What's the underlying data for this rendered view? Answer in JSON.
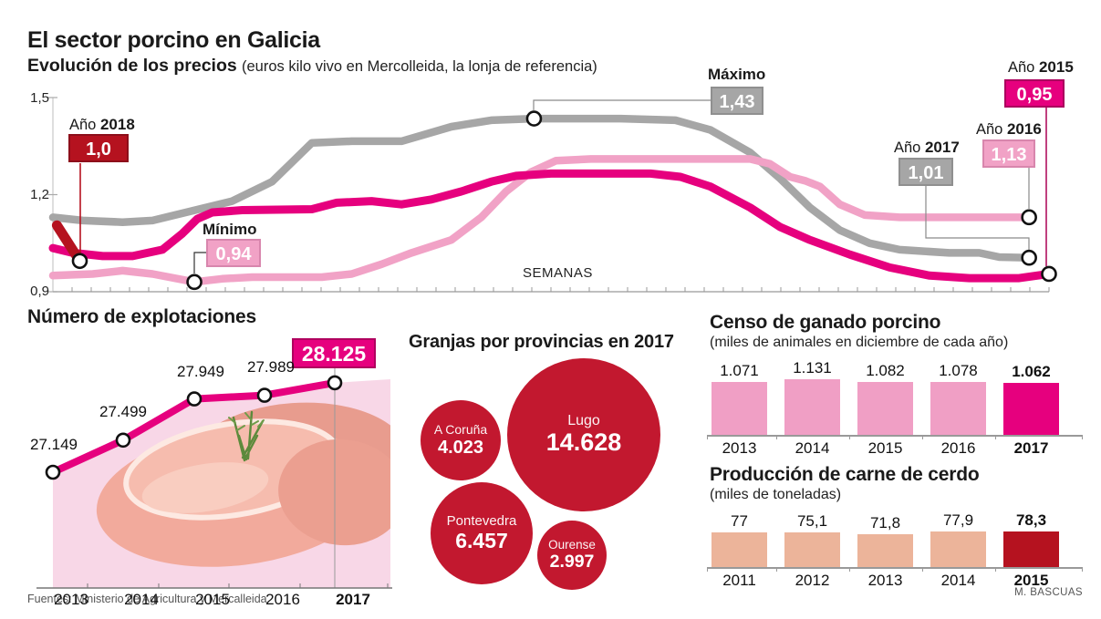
{
  "header": {
    "title": "El sector porcino en Galicia",
    "subtitle_bold": "Evolución de los precios",
    "subtitle_note": "(euros kilo vivo en Mercolleida, la lonja de referencia)"
  },
  "colors": {
    "magenta": "#e6007e",
    "light_pink": "#f1a2c6",
    "gray": "#a6a6a6",
    "dark_red": "#b5121f",
    "bubble_red": "#c2182f",
    "salmon": "#ecb49a",
    "area_fill": "#f8d7e7"
  },
  "chart_data": [
    {
      "type": "line",
      "title": "Evolución de los precios",
      "subtitle": "(euros kilo vivo en Mercolleida, la lonja de referencia)",
      "xlabel": "SEMANAS",
      "ylim": [
        0.9,
        1.5
      ],
      "yticks": [
        1.5,
        1.2,
        0.9
      ],
      "yticks_labels": [
        "1,5",
        "1,2",
        "0,9"
      ],
      "x_unit": "fraction of year (weeks)",
      "series": [
        {
          "name": "2017",
          "color": "#a6a6a6",
          "points": [
            [
              0,
              1.13
            ],
            [
              0.03,
              1.12
            ],
            [
              0.07,
              1.115
            ],
            [
              0.1,
              1.12
            ],
            [
              0.14,
              1.15
            ],
            [
              0.18,
              1.18
            ],
            [
              0.22,
              1.24
            ],
            [
              0.24,
              1.3
            ],
            [
              0.26,
              1.36
            ],
            [
              0.3,
              1.365
            ],
            [
              0.35,
              1.365
            ],
            [
              0.4,
              1.41
            ],
            [
              0.44,
              1.43
            ],
            [
              0.483,
              1.435
            ],
            [
              0.57,
              1.435
            ],
            [
              0.625,
              1.43
            ],
            [
              0.66,
              1.4
            ],
            [
              0.7,
              1.33
            ],
            [
              0.73,
              1.25
            ],
            [
              0.76,
              1.16
            ],
            [
              0.79,
              1.09
            ],
            [
              0.82,
              1.05
            ],
            [
              0.85,
              1.03
            ],
            [
              0.9,
              1.02
            ],
            [
              0.93,
              1.02
            ],
            [
              0.95,
              1.007
            ],
            [
              0.98,
              1.005
            ]
          ]
        },
        {
          "name": "2016",
          "color": "#f1a2c6",
          "points": [
            [
              0,
              0.95
            ],
            [
              0.04,
              0.955
            ],
            [
              0.07,
              0.965
            ],
            [
              0.1,
              0.955
            ],
            [
              0.142,
              0.93
            ],
            [
              0.17,
              0.94
            ],
            [
              0.2,
              0.945
            ],
            [
              0.27,
              0.945
            ],
            [
              0.3,
              0.955
            ],
            [
              0.33,
              0.985
            ],
            [
              0.36,
              1.02
            ],
            [
              0.4,
              1.06
            ],
            [
              0.43,
              1.13
            ],
            [
              0.455,
              1.21
            ],
            [
              0.48,
              1.27
            ],
            [
              0.505,
              1.305
            ],
            [
              0.54,
              1.31
            ],
            [
              0.7,
              1.31
            ],
            [
              0.72,
              1.295
            ],
            [
              0.74,
              1.255
            ],
            [
              0.755,
              1.243
            ],
            [
              0.77,
              1.225
            ],
            [
              0.79,
              1.17
            ],
            [
              0.815,
              1.137
            ],
            [
              0.85,
              1.13
            ],
            [
              0.98,
              1.13
            ]
          ]
        },
        {
          "name": "2015",
          "color": "#e6007e",
          "points": [
            [
              0,
              1.035
            ],
            [
              0.02,
              1.02
            ],
            [
              0.05,
              1.01
            ],
            [
              0.08,
              1.01
            ],
            [
              0.11,
              1.03
            ],
            [
              0.13,
              1.08
            ],
            [
              0.145,
              1.125
            ],
            [
              0.16,
              1.145
            ],
            [
              0.19,
              1.152
            ],
            [
              0.26,
              1.155
            ],
            [
              0.285,
              1.175
            ],
            [
              0.32,
              1.18
            ],
            [
              0.35,
              1.17
            ],
            [
              0.38,
              1.185
            ],
            [
              0.41,
              1.21
            ],
            [
              0.44,
              1.24
            ],
            [
              0.465,
              1.258
            ],
            [
              0.5,
              1.265
            ],
            [
              0.6,
              1.265
            ],
            [
              0.63,
              1.255
            ],
            [
              0.66,
              1.225
            ],
            [
              0.7,
              1.16
            ],
            [
              0.73,
              1.1
            ],
            [
              0.76,
              1.06
            ],
            [
              0.8,
              1.015
            ],
            [
              0.84,
              0.975
            ],
            [
              0.88,
              0.95
            ],
            [
              0.92,
              0.942
            ],
            [
              0.97,
              0.942
            ],
            [
              1,
              0.955
            ]
          ]
        },
        {
          "name": "2018",
          "color": "#b5121f",
          "points": [
            [
              0.004,
              1.105
            ],
            [
              0.027,
              0.995
            ]
          ]
        }
      ],
      "markers": [
        {
          "series": "2016",
          "t": 0.142,
          "v": 0.93
        },
        {
          "series": "2017",
          "t": 0.483,
          "v": 1.435
        },
        {
          "series": "2018",
          "t": 0.027,
          "v": 0.995
        },
        {
          "series": "2016",
          "t": 0.98,
          "v": 1.13
        },
        {
          "series": "2017",
          "t": 0.98,
          "v": 1.005
        },
        {
          "series": "2015",
          "t": 1.0,
          "v": 0.955
        }
      ],
      "annotations": {
        "a2018": {
          "prefix": "Año",
          "year": "2018",
          "value": "1,0"
        },
        "min": {
          "label": "Mínimo",
          "value": "0,94"
        },
        "max": {
          "label": "Máximo",
          "value": "1,43"
        },
        "a2017": {
          "prefix": "Año",
          "year": "2017",
          "value": "1,01"
        },
        "a2016": {
          "prefix": "Año",
          "year": "2016",
          "value": "1,13"
        },
        "a2015": {
          "prefix": "Año",
          "year": "2015",
          "value": "0,95"
        }
      }
    },
    {
      "type": "area",
      "title": "Número de explotaciones",
      "categories": [
        "2013",
        "2014",
        "2015",
        "2016",
        "2017"
      ],
      "values": [
        27149,
        27499,
        27949,
        27989,
        28125
      ],
      "labels": [
        "27.149",
        "27.499",
        "27.949",
        "27.989",
        "28.125"
      ],
      "highlight_index": 4,
      "line_color": "#e6007e",
      "fill_color": "#f8d7e7"
    },
    {
      "type": "bubble",
      "title": "Granjas por provincias en 2017",
      "bubbles": [
        {
          "name": "A Coruña",
          "value": 4023,
          "label": "4.023"
        },
        {
          "name": "Lugo",
          "value": 14628,
          "label": "14.628"
        },
        {
          "name": "Pontevedra",
          "value": 6457,
          "label": "6.457"
        },
        {
          "name": "Ourense",
          "value": 2997,
          "label": "2.997"
        }
      ],
      "color": "#c2182f"
    },
    {
      "type": "bar",
      "title": "Censo de ganado porcino",
      "subtitle": "(miles de animales en diciembre de cada año)",
      "categories": [
        "2013",
        "2014",
        "2015",
        "2016",
        "2017"
      ],
      "values": [
        1071,
        1131,
        1082,
        1078,
        1062
      ],
      "labels": [
        "1.071",
        "1.131",
        "1.082",
        "1.078",
        "1.062"
      ],
      "bar_color": "#f09fc5",
      "highlight_color": "#e6007e",
      "highlight_index": 4
    },
    {
      "type": "bar",
      "title": "Producción de carne de cerdo",
      "subtitle": "(miles de toneladas)",
      "categories": [
        "2011",
        "2012",
        "2013",
        "2014",
        "2015"
      ],
      "values": [
        77,
        75.1,
        71.8,
        77.9,
        78.3
      ],
      "labels": [
        "77",
        "75,1",
        "71,8",
        "77,9",
        "78,3"
      ],
      "bar_color": "#ecb49a",
      "highlight_color": "#b5121f",
      "highlight_index": 4
    }
  ],
  "footer": {
    "sources": "Fuentes: Ministerio de Agricultura y Mercalleida",
    "credit": "M. BASCUAS"
  }
}
